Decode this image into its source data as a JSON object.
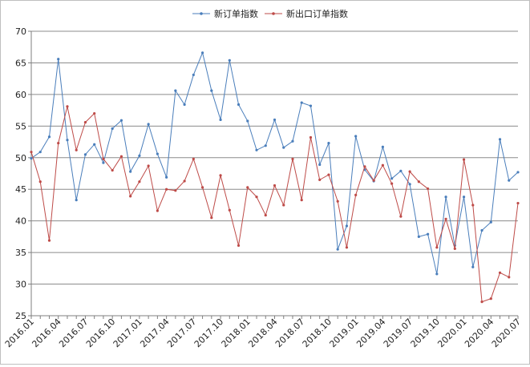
{
  "chart_data": {
    "type": "line",
    "title": "",
    "xlabel": "",
    "ylabel": "",
    "ylim": [
      25,
      70
    ],
    "yticks": [
      25,
      30,
      35,
      40,
      45,
      50,
      55,
      60,
      65,
      70
    ],
    "grid": "horizontal",
    "legend_position": "top-center",
    "x": [
      "2016.01",
      "2016.02",
      "2016.03",
      "2016.04",
      "2016.05",
      "2016.06",
      "2016.07",
      "2016.08",
      "2016.09",
      "2016.10",
      "2016.11",
      "2016.12",
      "2017.01",
      "2017.02",
      "2017.03",
      "2017.04",
      "2017.05",
      "2017.06",
      "2017.07",
      "2017.08",
      "2017.09",
      "2017.10",
      "2017.11",
      "2017.12",
      "2018.01",
      "2018.02",
      "2018.03",
      "2018.04",
      "2018.05",
      "2018.06",
      "2018.07",
      "2018.08",
      "2018.09",
      "2018.10",
      "2018.11",
      "2018.12",
      "2019.01",
      "2019.02",
      "2019.03",
      "2019.04",
      "2019.05",
      "2019.06",
      "2019.07",
      "2019.08",
      "2019.09",
      "2019.10",
      "2019.11",
      "2019.12",
      "2020.01",
      "2020.02",
      "2020.03",
      "2020.04",
      "2020.05",
      "2020.06",
      "2020.07"
    ],
    "x_tick_labels": [
      "2016.01",
      "2016.04",
      "2016.07",
      "2016.10",
      "2017.01",
      "2017.04",
      "2017.07",
      "2017.10",
      "2018.01",
      "2018.04",
      "2018.07",
      "2018.10",
      "2019.01",
      "2019.04",
      "2019.07",
      "2019.10",
      "2020.01",
      "2020.04",
      "2020.07"
    ],
    "series": [
      {
        "name": "新订单指数",
        "color": "#4a7ebb",
        "values": [
          49.9,
          50.9,
          53.3,
          65.6,
          52.8,
          43.3,
          50.5,
          52.1,
          49.2,
          54.6,
          55.9,
          47.8,
          50.3,
          55.3,
          50.6,
          46.9,
          60.6,
          58.4,
          63.1,
          66.6,
          60.6,
          56.0,
          65.4,
          58.4,
          55.8,
          51.2,
          51.9,
          56.0,
          51.6,
          52.6,
          58.7,
          58.2,
          48.9,
          52.3,
          35.5,
          39.2,
          53.4,
          48.1,
          46.3,
          51.7,
          46.7,
          47.9,
          45.8,
          37.5,
          37.9,
          31.6,
          43.8,
          36.1,
          43.8,
          32.7,
          38.5,
          39.8,
          52.9,
          46.4,
          47.7
        ]
      },
      {
        "name": "新出口订单指数",
        "color": "#be4b48",
        "values": [
          50.9,
          46.2,
          36.9,
          52.3,
          58.1,
          51.2,
          55.6,
          57.0,
          49.8,
          48.0,
          50.2,
          43.9,
          46.2,
          48.7,
          41.6,
          45.0,
          44.8,
          46.3,
          49.8,
          45.3,
          40.5,
          47.2,
          41.7,
          36.1,
          45.3,
          43.8,
          40.9,
          45.6,
          42.5,
          49.8,
          43.3,
          53.2,
          46.5,
          47.3,
          43.1,
          35.8,
          44.1,
          48.6,
          46.4,
          48.8,
          45.9,
          40.7,
          47.8,
          46.2,
          45.1,
          35.8,
          40.3,
          35.6,
          49.7,
          42.5,
          27.2,
          27.7,
          31.8,
          31.1,
          42.8
        ]
      }
    ]
  }
}
